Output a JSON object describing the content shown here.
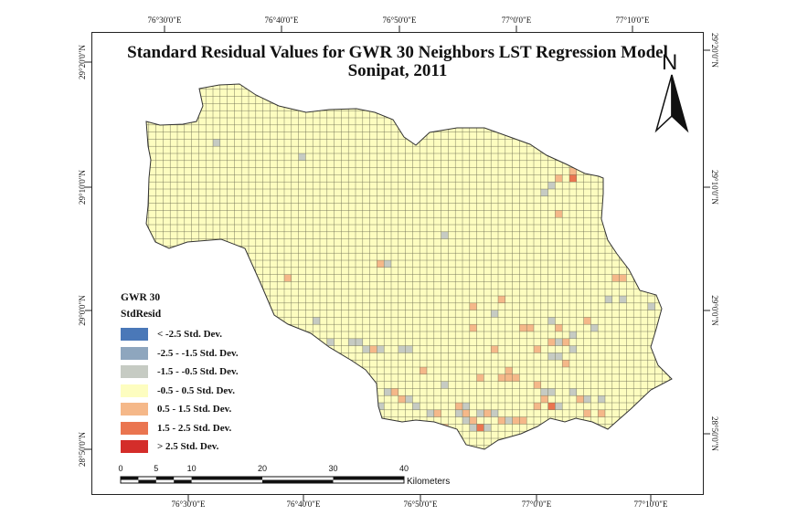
{
  "title_line1": "Standard Residual Values for GWR 30 Neighbors LST Regression Model",
  "title_line2": "Sonipat, 2011",
  "top_ticks": [
    "76°30'0\"E",
    "76°40'0\"E",
    "76°50'0\"E",
    "77°0'0\"E",
    "77°10'0\"E"
  ],
  "bottom_ticks": [
    "76°30'0\"E",
    "76°40'0\"E",
    "76°50'0\"E",
    "77°0'0\"E",
    "77°10'0\"E"
  ],
  "left_ticks": [
    "29°20'0\"N",
    "29°10'0\"N",
    "29°0'0\"N",
    "28°50'0\"N"
  ],
  "right_ticks": [
    "29°20'0\"N",
    "29°10'0\"N",
    "29°0'0\"N",
    "28°50'0\"N"
  ],
  "legend": {
    "title": "GWR 30",
    "field": "StdResid",
    "classes": [
      {
        "label": "< -2.5 Std. Dev.",
        "color": "#4a78b8"
      },
      {
        "label": "-2.5 - -1.5 Std. Dev.",
        "color": "#8ea6be"
      },
      {
        "label": "-1.5 - -0.5 Std. Dev.",
        "color": "#c6cbc3"
      },
      {
        "label": "-0.5 - 0.5 Std. Dev.",
        "color": "#fdfdc0"
      },
      {
        "label": "0.5 - 1.5 Std. Dev.",
        "color": "#f5b889"
      },
      {
        "label": "1.5 - 2.5 Std. Dev.",
        "color": "#ea7550"
      },
      {
        "label": "> 2.5 Std. Dev.",
        "color": "#d42d2a"
      }
    ]
  },
  "north_label": "N",
  "scale": {
    "ticks": [
      "0",
      "5",
      "10",
      "20",
      "30",
      "40"
    ],
    "unit": "Kilometers"
  }
}
